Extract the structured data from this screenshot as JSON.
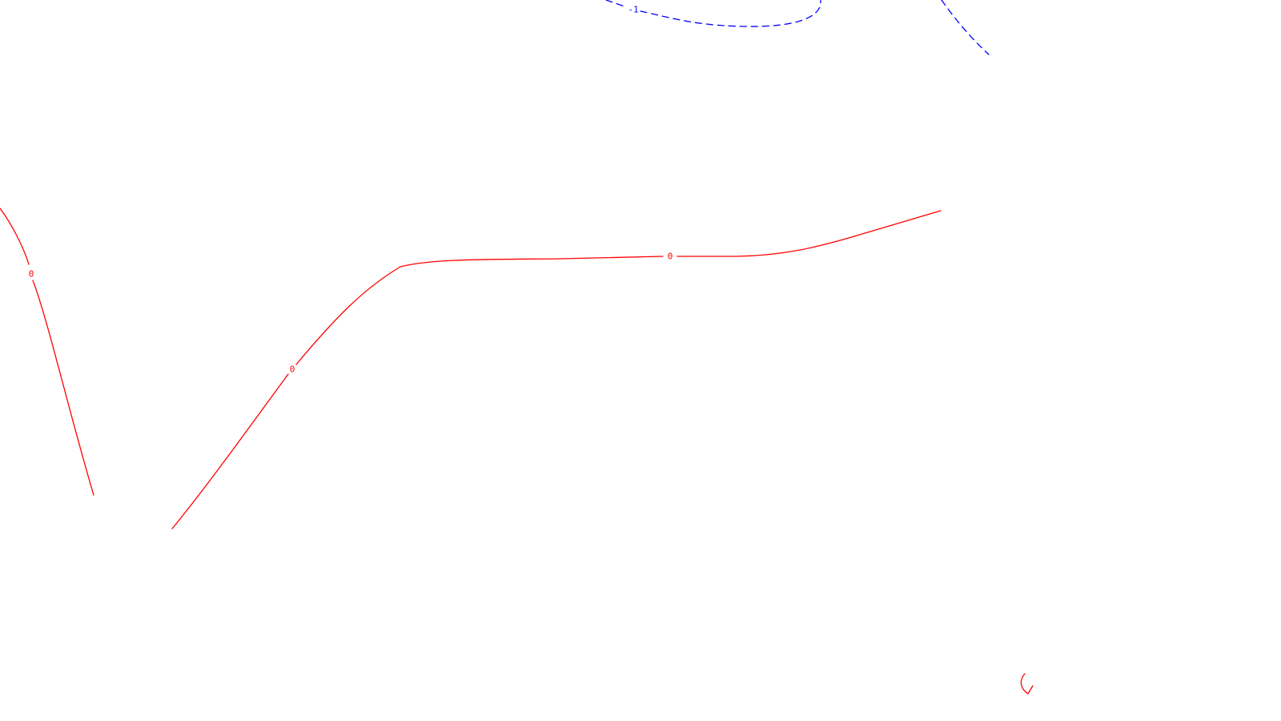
{
  "map": {
    "colors": {
      "background": "#ffffff",
      "zero_contour": "#ff0000",
      "negative_contour": "#0000ff"
    },
    "contours": {
      "negative": {
        "level_label": "-1",
        "line_style": "dashed"
      },
      "zero_a": {
        "level_label": "0",
        "line_style": "solid"
      },
      "zero_b": {
        "level_label": "0",
        "line_style": "solid"
      },
      "zero_c": {
        "level_label": "0",
        "line_style": "solid"
      }
    }
  }
}
